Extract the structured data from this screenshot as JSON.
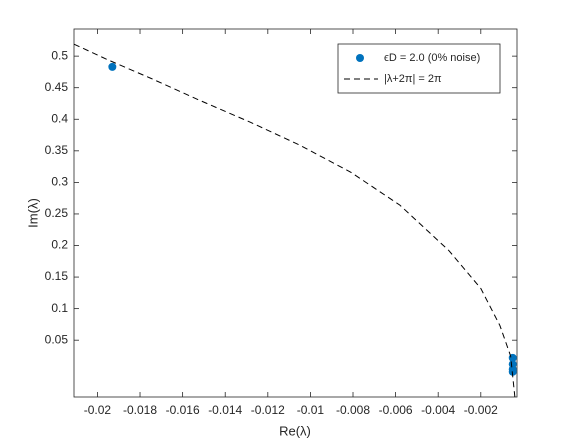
{
  "chart_data": {
    "type": "scatter",
    "xlabel": "Re(λ)",
    "ylabel": "Im(λ)",
    "xlim": [
      -0.0211,
      -0.0003
    ],
    "ylim": [
      -0.04,
      0.543
    ],
    "xticks": [
      -0.02,
      -0.018,
      -0.016,
      -0.014,
      -0.012,
      -0.01,
      -0.008,
      -0.006,
      -0.004,
      -0.002
    ],
    "yticks": [
      0.05,
      0.1,
      0.15,
      0.2,
      0.25,
      0.3,
      0.35,
      0.4,
      0.45,
      0.5
    ],
    "legend": "upper right",
    "series": [
      {
        "name": "ϵD = 2.0 (0% noise)",
        "kind": "scatter",
        "color": "#0072bd",
        "x": [
          -0.0193,
          -0.0005,
          -0.0005,
          -0.0005,
          -0.0005
        ],
        "values": [
          0.483,
          0.022,
          0.012,
          0.004,
          0.0
        ]
      },
      {
        "name": "|λ+2π| = 2π",
        "kind": "line",
        "color": "#000000",
        "x": [
          -0.0211,
          -0.0195,
          -0.0175,
          -0.0152,
          -0.0128,
          -0.0105,
          -0.0081,
          -0.0058,
          -0.0035,
          -0.002,
          -0.0011,
          -0.0006,
          -0.0004
        ],
        "values": [
          0.519,
          0.494,
          0.465,
          0.43,
          0.395,
          0.359,
          0.316,
          0.264,
          0.192,
          0.132,
          0.073,
          0.025,
          -0.04
        ]
      }
    ]
  }
}
